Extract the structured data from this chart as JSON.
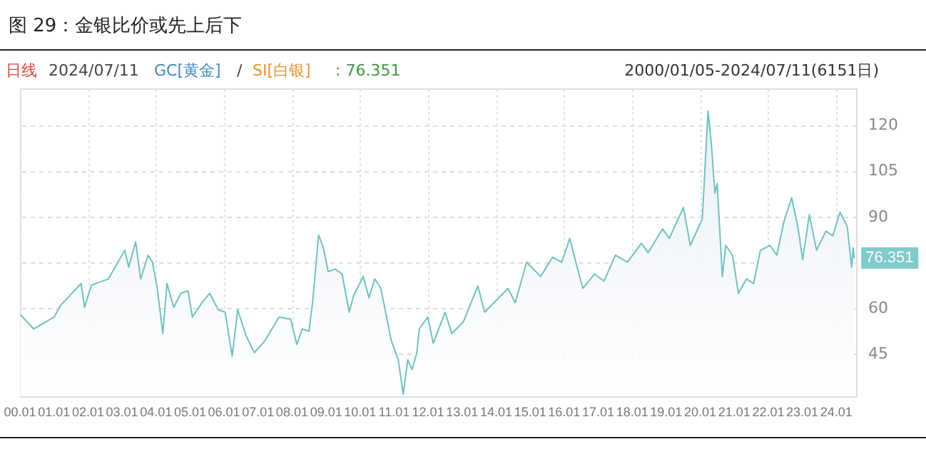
{
  "chart_data": {
    "type": "area",
    "title": "图 29：金银比价或先上后下",
    "annotations": [
      "日线",
      "2024/07/11",
      "GC[黄金]",
      "/",
      "SI[白银]",
      ": 76.351",
      "2000/01/05-2024/07/11(6151日)",
      {
        "text": "76.351",
        "x": "2024-07-11",
        "y": 76.351
      }
    ],
    "x": [
      "2000-01-05",
      "2000-05-27",
      "2001-01-02",
      "2001-03-14",
      "2001-10-19",
      "2001-11-24",
      "2002-02-07",
      "2002-08-08",
      "2003-01-30",
      "2003-03-14",
      "2003-05-27",
      "2003-07-20",
      "2003-10-08",
      "2003-11-24",
      "2004-01-15",
      "2004-03-14",
      "2004-04-28",
      "2004-07-09",
      "2004-09-24",
      "2004-12-10",
      "2005-01-26",
      "2005-05-08",
      "2005-07-31",
      "2005-10-30",
      "2006-01-12",
      "2006-03-29",
      "2006-05-27",
      "2006-08-26",
      "2006-11-22",
      "2007-03-14",
      "2007-08-15",
      "2007-12-17",
      "2008-02-21",
      "2008-04-20",
      "2008-07-01",
      "2008-08-08",
      "2008-10-12",
      "2008-12-02",
      "2009-01-23",
      "2009-04-09",
      "2009-06-21",
      "2009-09-06",
      "2009-10-23",
      "2010-02-03",
      "2010-04-06",
      "2010-06-07",
      "2010-08-11",
      "2010-12-02",
      "2011-02-14",
      "2011-04-09",
      "2011-05-27",
      "2011-07-13",
      "2011-09-02",
      "2011-09-28",
      "2011-12-28",
      "2012-02-25",
      "2012-07-01",
      "2012-09-12",
      "2013-01-15",
      "2013-06-18",
      "2013-08-30",
      "2014-05-08",
      "2014-07-24",
      "2014-11-24",
      "2015-04-23",
      "2015-08-29",
      "2015-12-06",
      "2016-03-01",
      "2016-05-05",
      "2016-07-20",
      "2016-11-22",
      "2017-03-04",
      "2017-07-05",
      "2017-11-10",
      "2018-04-09",
      "2018-06-21",
      "2018-11-22",
      "2019-02-03",
      "2019-07-05",
      "2019-09-16",
      "2020-01-23",
      "2020-03-25",
      "2020-05-01",
      "2020-06-07",
      "2020-07-01",
      "2020-08-26",
      "2020-10-01",
      "2020-12-13",
      "2021-02-14",
      "2021-05-12",
      "2021-07-27",
      "2021-10-08",
      "2022-01-19",
      "2022-04-02",
      "2022-06-18",
      "2022-09-09",
      "2022-11-14",
      "2023-01-05",
      "2023-03-18",
      "2023-06-03",
      "2023-09-13",
      "2023-11-24",
      "2024-02-10",
      "2024-04-28",
      "2024-06-14",
      "2024-07-01",
      "2024-07-11"
    ],
    "series": [
      {
        "color": "#6cc3c3",
        "values": [
          57.8,
          53.1,
          57.0,
          60.9,
          68.0,
          60.2,
          67.5,
          69.5,
          78.9,
          73.4,
          81.7,
          69.5,
          77.3,
          75.0,
          66.4,
          51.6,
          68.0,
          60.2,
          64.8,
          65.6,
          57.0,
          61.7,
          64.8,
          59.4,
          58.6,
          44.2,
          59.4,
          50.8,
          45.3,
          49.2,
          57.0,
          56.3,
          48.0,
          53.1,
          52.3,
          61.7,
          83.9,
          79.7,
          71.9,
          72.7,
          71.1,
          58.6,
          64.1,
          70.3,
          63.3,
          69.5,
          66.4,
          49.2,
          43.0,
          31.7,
          43.0,
          39.8,
          45.3,
          53.1,
          57.0,
          48.4,
          58.6,
          51.6,
          55.5,
          67.2,
          58.6,
          66.4,
          61.7,
          75.0,
          70.3,
          76.6,
          75.0,
          82.8,
          75.0,
          66.4,
          71.1,
          68.8,
          77.3,
          75.0,
          81.2,
          78.1,
          85.9,
          82.8,
          93.0,
          80.5,
          89.1,
          124.5,
          113.3,
          97.6,
          100.8,
          70.3,
          80.5,
          77.3,
          64.8,
          69.5,
          68.0,
          78.9,
          80.5,
          77.3,
          88.3,
          96.1,
          86.7,
          75.8,
          90.6,
          78.9,
          85.2,
          83.6,
          91.4,
          86.7,
          73.4,
          79.7,
          76.351
        ]
      }
    ],
    "xlim": [
      "2000-01-01",
      "2024-08-01"
    ],
    "xticks": [
      {
        "value": "2000-01",
        "label": "00.01"
      },
      {
        "value": "2001-01",
        "label": "01.01"
      },
      {
        "value": "2002-01",
        "label": "02.01"
      },
      {
        "value": "2003-01",
        "label": "03.01"
      },
      {
        "value": "2004-01",
        "label": "04.01"
      },
      {
        "value": "2005-01",
        "label": "05.01"
      },
      {
        "value": "2006-01",
        "label": "06.01"
      },
      {
        "value": "2007-01",
        "label": "07.01"
      },
      {
        "value": "2008-01",
        "label": "08.01"
      },
      {
        "value": "2009-01",
        "label": "09.01"
      },
      {
        "value": "2010-01",
        "label": "10.01"
      },
      {
        "value": "2011-01",
        "label": "11.01"
      },
      {
        "value": "2012-01",
        "label": "12.01"
      },
      {
        "value": "2013-01",
        "label": "13.01"
      },
      {
        "value": "2014-01",
        "label": "14.01"
      },
      {
        "value": "2015-01",
        "label": "15.01"
      },
      {
        "value": "2016-01",
        "label": "16.01"
      },
      {
        "value": "2017-01",
        "label": "17.01"
      },
      {
        "value": "2018-01",
        "label": "18.01"
      },
      {
        "value": "2019-01",
        "label": "19.01"
      },
      {
        "value": "2020-01",
        "label": "20.01"
      },
      {
        "value": "2021-01",
        "label": "21.01"
      },
      {
        "value": "2022-01",
        "label": "22.01"
      },
      {
        "value": "2023-01",
        "label": "23.01"
      },
      {
        "value": "2024-01",
        "label": "24.01"
      }
    ],
    "ylim": [
      31,
      132
    ],
    "yticks": [
      45,
      60,
      {
        "value": 75,
        "label": null
      },
      90,
      105,
      120
    ],
    "grid": true
  }
}
